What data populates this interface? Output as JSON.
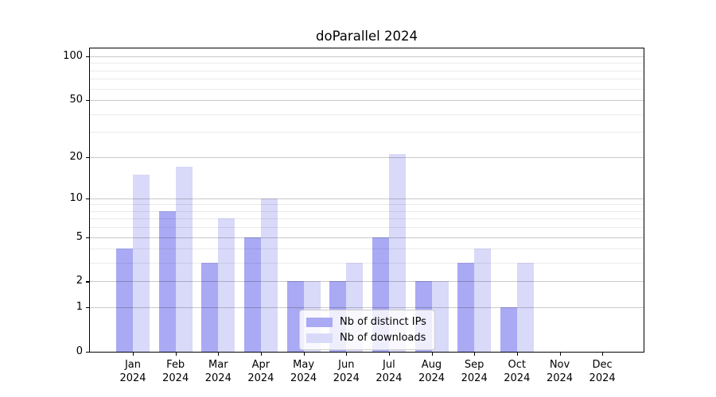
{
  "chart_data": {
    "type": "bar",
    "title": "doParallel 2024",
    "categories": [
      "Jan 2024",
      "Feb 2024",
      "Mar 2024",
      "Apr 2024",
      "May 2024",
      "Jun 2024",
      "Jul 2024",
      "Aug 2024",
      "Sep 2024",
      "Oct 2024",
      "Nov 2024",
      "Dec 2024"
    ],
    "series": [
      {
        "name": "Nb of distinct IPs",
        "color": "#a9a9f4",
        "values": [
          4,
          8,
          3,
          5,
          2,
          2,
          5,
          2,
          3,
          1,
          0,
          0
        ]
      },
      {
        "name": "Nb of downloads",
        "color": "#d9d9f9",
        "values": [
          15,
          17,
          7,
          10,
          2,
          3,
          21,
          2,
          4,
          3,
          0,
          0
        ]
      }
    ],
    "yscale": "log1p",
    "xlabel": "",
    "ylabel": "",
    "y_axis": {
      "major_ticks": [
        100,
        50,
        20,
        10,
        5,
        2,
        1,
        0
      ],
      "minor_gridlines": [
        3,
        4,
        6,
        7,
        8,
        9,
        30,
        40,
        60,
        70,
        80,
        90
      ],
      "top_value": 113
    },
    "legend_position": "lower center",
    "grid": true,
    "colors": {
      "grid_major": "#c9c9c9",
      "grid_minor": "#ebebeb",
      "axis": "#000000",
      "text": "#000000"
    }
  }
}
